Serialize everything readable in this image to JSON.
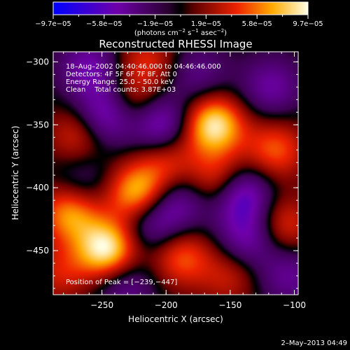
{
  "chart_data": {
    "type": "heatmap",
    "title": "Reconstructed RHESSI Image",
    "xlabel": "Heliocentric X (arcsec)",
    "ylabel": "Heliocentric Y (arcsec)",
    "xlim": [
      -288,
      -97
    ],
    "ylim": [
      -485,
      -292
    ],
    "x_ticks": [
      {
        "v": -250,
        "label": "−250"
      },
      {
        "v": -200,
        "label": "−200"
      },
      {
        "v": -150,
        "label": "−150"
      },
      {
        "v": -100,
        "label": "−100"
      }
    ],
    "y_ticks": [
      {
        "v": -300,
        "label": "−300"
      },
      {
        "v": -350,
        "label": "−350"
      },
      {
        "v": -400,
        "label": "−400"
      },
      {
        "v": -450,
        "label": "−450"
      }
    ],
    "colorbar": {
      "range": [
        -9.7e-05,
        9.7e-05
      ],
      "tick_labels": [
        "−9.7e−05",
        "−5.8e−05",
        "−1.9e−05",
        "1.9e−05",
        "5.8e−05",
        "9.7e−05"
      ],
      "unit_parts": [
        "(photons cm",
        "−2",
        " s",
        "−1",
        " asec",
        "−2",
        ")"
      ]
    },
    "annotations": [
      "18–Aug–2002 04:40:46.000 to 04:46:46.000",
      "Detectors: 4F 5F 6F 7F 8F, Att 0",
      "Energy Range: 25.0 – 50.0 keV",
      "Clean    Total counts: 3.87E+03"
    ],
    "peak_label": "Position of Peak = [−239,−447]",
    "peak": [
      -239,
      -447
    ],
    "footer": "2–May–2013 04:49",
    "sources": [
      {
        "x": -246,
        "y": -449,
        "amp": 1.0
      },
      {
        "x": -163,
        "y": -350,
        "amp": 0.95
      },
      {
        "x": -222,
        "y": -405,
        "amp": 0.85
      },
      {
        "x": -275,
        "y": -420,
        "amp": 0.7
      },
      {
        "x": -228,
        "y": -335,
        "amp": 0.55
      },
      {
        "x": -158,
        "y": -395,
        "amp": 0.6
      },
      {
        "x": -188,
        "y": -455,
        "amp": 0.55
      },
      {
        "x": -268,
        "y": -358,
        "amp": 0.45
      },
      {
        "x": -115,
        "y": -370,
        "amp": 0.55
      },
      {
        "x": -110,
        "y": -430,
        "amp": 0.5
      },
      {
        "x": -200,
        "y": -378,
        "amp": 0.45
      },
      {
        "x": -215,
        "y": -300,
        "amp": 0.4
      },
      {
        "x": -283,
        "y": -468,
        "amp": 0.35
      },
      {
        "x": -150,
        "y": -470,
        "amp": 0.35
      },
      {
        "x": -245,
        "y": -342,
        "amp": -0.8
      },
      {
        "x": -205,
        "y": -350,
        "amp": -0.7
      },
      {
        "x": -142,
        "y": -405,
        "amp": -0.8
      },
      {
        "x": -260,
        "y": -305,
        "amp": -0.5
      },
      {
        "x": -135,
        "y": -440,
        "amp": -0.55
      },
      {
        "x": -212,
        "y": -428,
        "amp": -0.5
      },
      {
        "x": -118,
        "y": -320,
        "amp": -0.45
      },
      {
        "x": -190,
        "y": -412,
        "amp": -0.45
      },
      {
        "x": -232,
        "y": -478,
        "amp": -0.4
      },
      {
        "x": -105,
        "y": -470,
        "amp": -0.4
      },
      {
        "x": -265,
        "y": -395,
        "amp": -0.3
      },
      {
        "x": -175,
        "y": -310,
        "amp": -0.35
      }
    ]
  }
}
